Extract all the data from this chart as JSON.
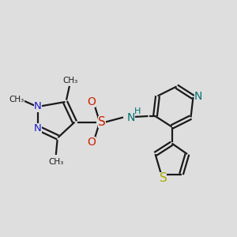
{
  "background_color": "#dedede",
  "bond_color": "#1a1a1a",
  "bond_width": 1.6,
  "atoms": {
    "N_blue": "#1a1acc",
    "N_pyridine": "#007070",
    "S_sulfonyl": "#cc2200",
    "S_thiophene": "#aaaa00",
    "O_red": "#cc2200",
    "H_teal": "#007070"
  },
  "xlim": [
    0,
    10
  ],
  "ylim": [
    1,
    9
  ]
}
